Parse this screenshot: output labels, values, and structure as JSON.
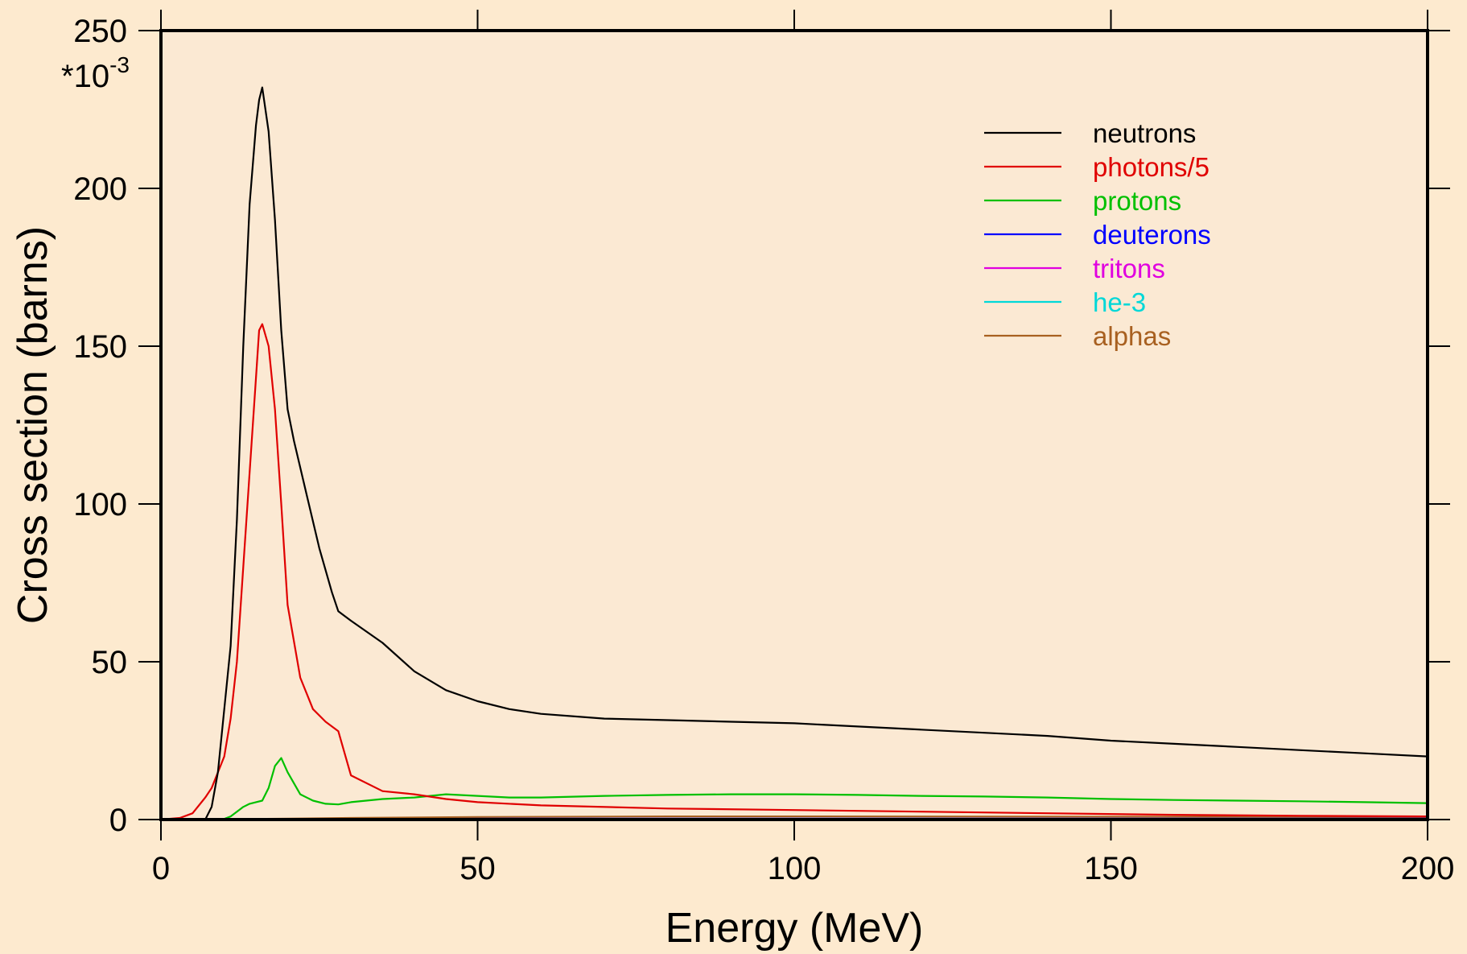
{
  "chart_data": {
    "type": "line",
    "xlabel": "Energy (MeV)",
    "ylabel": "Cross section (barns)",
    "y_multiplier": {
      "base": "*10",
      "exponent": "-3"
    },
    "xlim": [
      0,
      200
    ],
    "ylim": [
      0,
      250
    ],
    "x_ticks": [
      0,
      50,
      100,
      150,
      200
    ],
    "y_ticks": [
      0,
      50,
      100,
      150,
      200,
      250
    ],
    "grid": false,
    "legend_position": "top-right",
    "series": [
      {
        "name": "neutrons",
        "color": "#000000",
        "x": [
          0,
          7,
          8,
          9,
          10,
          11,
          12,
          13,
          14,
          15,
          15.5,
          16,
          17,
          18,
          19,
          20,
          21,
          23,
          25,
          27,
          28,
          30,
          35,
          40,
          45,
          50,
          55,
          60,
          70,
          80,
          90,
          100,
          110,
          120,
          130,
          140,
          150,
          160,
          170,
          180,
          190,
          200
        ],
        "y": [
          0,
          0,
          4,
          15,
          35,
          55,
          95,
          150,
          195,
          220,
          228,
          232,
          218,
          190,
          155,
          130,
          120,
          103,
          86,
          72,
          66,
          63,
          56,
          47,
          41,
          37.5,
          35,
          33.5,
          32,
          31.5,
          31,
          30.5,
          29.5,
          28.5,
          27.5,
          26.5,
          25,
          24,
          23,
          22,
          21,
          20
        ]
      },
      {
        "name": "photons/5",
        "color": "#e00000",
        "x": [
          0,
          3,
          5,
          7,
          8,
          10,
          11,
          12,
          13,
          14,
          15,
          15.5,
          16,
          17,
          18,
          19,
          20,
          22,
          24,
          26,
          28,
          30,
          35,
          40,
          45,
          50,
          60,
          80,
          100,
          120,
          140,
          160,
          180,
          200
        ],
        "y": [
          0,
          0.5,
          2,
          7,
          10,
          20,
          32,
          50,
          80,
          110,
          140,
          155,
          157,
          150,
          130,
          100,
          68,
          45,
          35,
          31,
          28,
          14,
          9,
          8,
          6.5,
          5.5,
          4.5,
          3.5,
          3,
          2.5,
          2,
          1.5,
          1.2,
          1
        ]
      },
      {
        "name": "protons",
        "color": "#00c000",
        "x": [
          0,
          9,
          10,
          11,
          12,
          13,
          14,
          15,
          16,
          17,
          18,
          19,
          20,
          22,
          24,
          26,
          28,
          30,
          35,
          40,
          45,
          50,
          55,
          60,
          70,
          80,
          90,
          100,
          110,
          120,
          130,
          140,
          150,
          160,
          170,
          180,
          190,
          200
        ],
        "y": [
          0,
          0,
          0.2,
          1,
          2.5,
          4,
          5,
          5.5,
          6,
          10,
          17,
          19.5,
          15,
          8,
          6,
          5,
          4.8,
          5.5,
          6.5,
          7,
          8,
          7.5,
          7,
          7,
          7.5,
          7.8,
          8,
          8,
          7.8,
          7.5,
          7.3,
          7,
          6.5,
          6.2,
          6,
          5.8,
          5.5,
          5.2
        ]
      },
      {
        "name": "deuterons",
        "color": "#0000ff",
        "x": [
          0,
          20,
          40,
          60,
          100,
          150,
          200
        ],
        "y": [
          0,
          0.1,
          0.2,
          0.3,
          0.3,
          0.3,
          0.3
        ]
      },
      {
        "name": "tritons",
        "color": "#e000e0",
        "x": [
          0,
          20,
          50,
          100,
          150,
          200
        ],
        "y": [
          0,
          0.05,
          0.1,
          0.1,
          0.1,
          0.1
        ]
      },
      {
        "name": "he-3",
        "color": "#00d8d8",
        "x": [
          0,
          20,
          50,
          100,
          150,
          200
        ],
        "y": [
          0,
          0.05,
          0.1,
          0.1,
          0.1,
          0.1
        ]
      },
      {
        "name": "alphas",
        "color": "#a86020",
        "x": [
          0,
          10,
          20,
          30,
          50,
          80,
          100,
          150,
          200
        ],
        "y": [
          0,
          0.1,
          0.3,
          0.5,
          0.8,
          1,
          1,
          0.9,
          0.8
        ]
      }
    ]
  }
}
